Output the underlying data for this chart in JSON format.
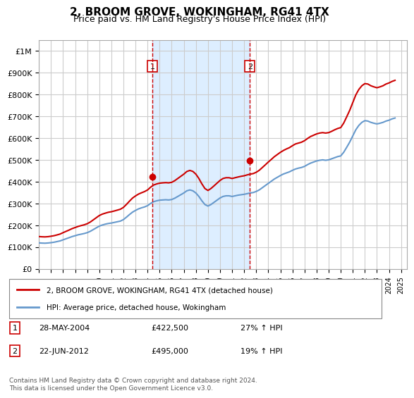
{
  "title": "2, BROOM GROVE, WOKINGHAM, RG41 4TX",
  "subtitle": "Price paid vs. HM Land Registry's House Price Index (HPI)",
  "xlabel": "",
  "ylabel": "",
  "ylim": [
    0,
    1050000
  ],
  "yticks": [
    0,
    100000,
    200000,
    300000,
    400000,
    500000,
    600000,
    700000,
    800000,
    900000,
    1000000
  ],
  "ytick_labels": [
    "£0",
    "£100K",
    "£200K",
    "£300K",
    "£400K",
    "£500K",
    "£600K",
    "£700K",
    "£800K",
    "£900K",
    "£1M"
  ],
  "xlim_start": 1995.0,
  "xlim_end": 2025.5,
  "xticks": [
    1995,
    1996,
    1997,
    1998,
    1999,
    2000,
    2001,
    2002,
    2003,
    2004,
    2005,
    2006,
    2007,
    2008,
    2009,
    2010,
    2011,
    2012,
    2013,
    2014,
    2015,
    2016,
    2017,
    2018,
    2019,
    2020,
    2021,
    2022,
    2023,
    2024,
    2025
  ],
  "background_color": "#ffffff",
  "plot_bg_color": "#ffffff",
  "grid_color": "#cccccc",
  "shaded_region_color": "#ddeeff",
  "red_line_color": "#cc0000",
  "blue_line_color": "#6699cc",
  "sale1_x": 2004.41,
  "sale1_y": 422500,
  "sale1_label": "1",
  "sale1_date": "28-MAY-2004",
  "sale1_price": "£422,500",
  "sale1_hpi": "27% ↑ HPI",
  "sale2_x": 2012.47,
  "sale2_y": 495000,
  "sale2_label": "2",
  "sale2_date": "22-JUN-2012",
  "sale2_price": "£495,000",
  "sale2_hpi": "19% ↑ HPI",
  "legend_line1": "2, BROOM GROVE, WOKINGHAM, RG41 4TX (detached house)",
  "legend_line2": "HPI: Average price, detached house, Wokingham",
  "footer": "Contains HM Land Registry data © Crown copyright and database right 2024.\nThis data is licensed under the Open Government Licence v3.0.",
  "hpi_years": [
    1995.0,
    1995.25,
    1995.5,
    1995.75,
    1996.0,
    1996.25,
    1996.5,
    1996.75,
    1997.0,
    1997.25,
    1997.5,
    1997.75,
    1998.0,
    1998.25,
    1998.5,
    1998.75,
    1999.0,
    1999.25,
    1999.5,
    1999.75,
    2000.0,
    2000.25,
    2000.5,
    2000.75,
    2001.0,
    2001.25,
    2001.5,
    2001.75,
    2002.0,
    2002.25,
    2002.5,
    2002.75,
    2003.0,
    2003.25,
    2003.5,
    2003.75,
    2004.0,
    2004.25,
    2004.5,
    2004.75,
    2005.0,
    2005.25,
    2005.5,
    2005.75,
    2006.0,
    2006.25,
    2006.5,
    2006.75,
    2007.0,
    2007.25,
    2007.5,
    2007.75,
    2008.0,
    2008.25,
    2008.5,
    2008.75,
    2009.0,
    2009.25,
    2009.5,
    2009.75,
    2010.0,
    2010.25,
    2010.5,
    2010.75,
    2011.0,
    2011.25,
    2011.5,
    2011.75,
    2012.0,
    2012.25,
    2012.5,
    2012.75,
    2013.0,
    2013.25,
    2013.5,
    2013.75,
    2014.0,
    2014.25,
    2014.5,
    2014.75,
    2015.0,
    2015.25,
    2015.5,
    2015.75,
    2016.0,
    2016.25,
    2016.5,
    2016.75,
    2017.0,
    2017.25,
    2017.5,
    2017.75,
    2018.0,
    2018.25,
    2018.5,
    2018.75,
    2019.0,
    2019.25,
    2019.5,
    2019.75,
    2020.0,
    2020.25,
    2020.5,
    2020.75,
    2021.0,
    2021.25,
    2021.5,
    2021.75,
    2022.0,
    2022.25,
    2022.5,
    2022.75,
    2023.0,
    2023.25,
    2023.5,
    2023.75,
    2024.0,
    2024.25,
    2024.5
  ],
  "hpi_values": [
    119000,
    118000,
    117500,
    118500,
    120000,
    122000,
    125000,
    128000,
    133000,
    138000,
    143000,
    148000,
    152000,
    156000,
    159000,
    162000,
    166000,
    172000,
    180000,
    188000,
    196000,
    201000,
    205000,
    208000,
    210000,
    213000,
    216000,
    219000,
    226000,
    237000,
    249000,
    260000,
    268000,
    275000,
    280000,
    284000,
    290000,
    300000,
    308000,
    312000,
    315000,
    316000,
    317000,
    316000,
    318000,
    324000,
    332000,
    340000,
    348000,
    358000,
    362000,
    358000,
    348000,
    332000,
    312000,
    295000,
    288000,
    295000,
    305000,
    315000,
    325000,
    332000,
    335000,
    335000,
    332000,
    335000,
    338000,
    340000,
    342000,
    345000,
    348000,
    350000,
    355000,
    362000,
    372000,
    382000,
    392000,
    402000,
    412000,
    420000,
    428000,
    435000,
    440000,
    445000,
    452000,
    458000,
    462000,
    465000,
    470000,
    478000,
    485000,
    490000,
    495000,
    498000,
    500000,
    498000,
    500000,
    505000,
    510000,
    515000,
    518000,
    535000,
    558000,
    582000,
    610000,
    638000,
    658000,
    672000,
    680000,
    678000,
    672000,
    668000,
    665000,
    668000,
    672000,
    678000,
    682000,
    688000,
    692000
  ],
  "red_years": [
    1995.0,
    1995.25,
    1995.5,
    1995.75,
    1996.0,
    1996.25,
    1996.5,
    1996.75,
    1997.0,
    1997.25,
    1997.5,
    1997.75,
    1998.0,
    1998.25,
    1998.5,
    1998.75,
    1999.0,
    1999.25,
    1999.5,
    1999.75,
    2000.0,
    2000.25,
    2000.5,
    2000.75,
    2001.0,
    2001.25,
    2001.5,
    2001.75,
    2002.0,
    2002.25,
    2002.5,
    2002.75,
    2003.0,
    2003.25,
    2003.5,
    2003.75,
    2004.0,
    2004.25,
    2004.5,
    2004.75,
    2005.0,
    2005.25,
    2005.5,
    2005.75,
    2006.0,
    2006.25,
    2006.5,
    2006.75,
    2007.0,
    2007.25,
    2007.5,
    2007.75,
    2008.0,
    2008.25,
    2008.5,
    2008.75,
    2009.0,
    2009.25,
    2009.5,
    2009.75,
    2010.0,
    2010.25,
    2010.5,
    2010.75,
    2011.0,
    2011.25,
    2011.5,
    2011.75,
    2012.0,
    2012.25,
    2012.5,
    2012.75,
    2013.0,
    2013.25,
    2013.5,
    2013.75,
    2014.0,
    2014.25,
    2014.5,
    2014.75,
    2015.0,
    2015.25,
    2015.5,
    2015.75,
    2016.0,
    2016.25,
    2016.5,
    2016.75,
    2017.0,
    2017.25,
    2017.5,
    2017.75,
    2018.0,
    2018.25,
    2018.5,
    2018.75,
    2019.0,
    2019.25,
    2019.5,
    2019.75,
    2020.0,
    2020.25,
    2020.5,
    2020.75,
    2021.0,
    2021.25,
    2021.5,
    2021.75,
    2022.0,
    2022.25,
    2022.5,
    2022.75,
    2023.0,
    2023.25,
    2023.5,
    2023.75,
    2024.0,
    2024.25,
    2024.5
  ],
  "red_values": [
    148000,
    147000,
    146500,
    147500,
    149500,
    152000,
    155500,
    159500,
    166000,
    172000,
    178000,
    184500,
    189500,
    194500,
    198500,
    202000,
    207000,
    214500,
    224500,
    234500,
    244500,
    251000,
    255500,
    259500,
    262000,
    265500,
    269500,
    273500,
    282000,
    295500,
    310500,
    324500,
    334500,
    343000,
    349000,
    354500,
    362000,
    374500,
    384500,
    389500,
    393000,
    394500,
    395500,
    394500,
    397000,
    404500,
    414500,
    424500,
    434500,
    446500,
    451500,
    447000,
    434500,
    414500,
    389500,
    368500,
    359500,
    368500,
    380500,
    393000,
    405500,
    414500,
    418000,
    418000,
    414500,
    418000,
    421500,
    424500,
    427000,
    431000,
    434500,
    437000,
    443000,
    452000,
    464500,
    477000,
    490000,
    502000,
    514500,
    524500,
    534500,
    543000,
    550000,
    556000,
    565000,
    573000,
    577000,
    581000,
    588000,
    598000,
    607000,
    613000,
    619000,
    623000,
    625000,
    623000,
    625000,
    631000,
    638000,
    644000,
    648000,
    669000,
    698000,
    728000,
    763000,
    798000,
    823000,
    840000,
    850000,
    848000,
    840000,
    835000,
    831000,
    835000,
    840000,
    848000,
    853000,
    860000,
    865000
  ]
}
